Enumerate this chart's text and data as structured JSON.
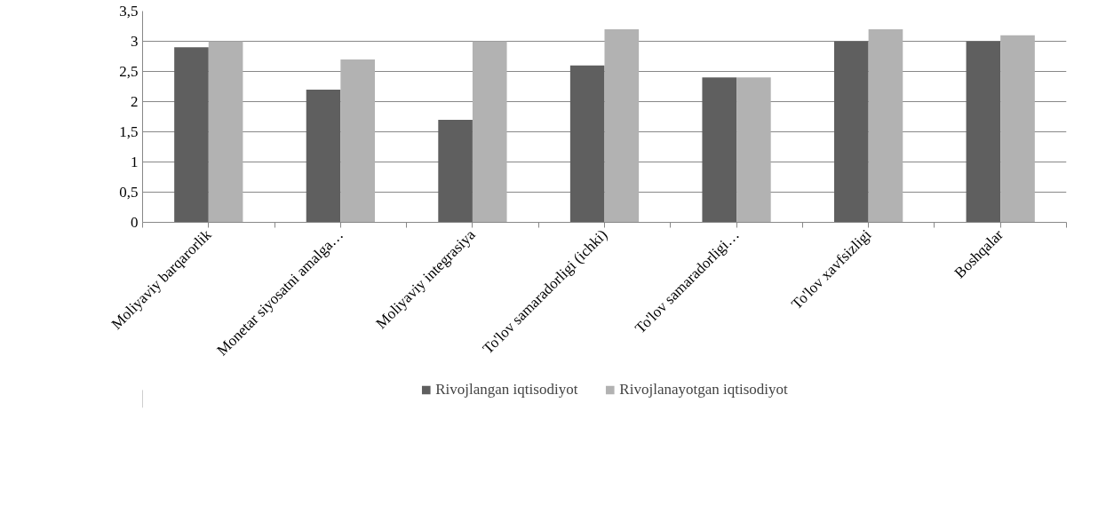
{
  "chart_data": {
    "type": "bar",
    "categories": [
      "Moliyaviy barqarorlik",
      "Monetar siyosatni amalga…",
      "Moliyaviy integrasiya",
      "To'lov samaradorligi (ichki)",
      "To'lov samaradorligi…",
      "To'lov xavfsizligi",
      "Boshqalar"
    ],
    "series": [
      {
        "name": "Rivojlangan iqtisodiyot",
        "color": "#5f5f5f",
        "values": [
          2.9,
          2.2,
          1.7,
          2.6,
          2.4,
          3.0,
          3.0
        ]
      },
      {
        "name": "Rivojlanayotgan iqtisodiyot",
        "color": "#b2b2b2",
        "values": [
          3.0,
          2.7,
          3.0,
          3.2,
          2.4,
          3.2,
          3.1
        ]
      }
    ],
    "ylim": [
      0,
      3.5
    ],
    "yticks": [
      0,
      {
        "value": 0.5,
        "label": "0,5"
      },
      1,
      {
        "value": 1.5,
        "label": "1,5"
      },
      2,
      {
        "value": 2.5,
        "label": "2,5"
      },
      3,
      {
        "value": 3.5,
        "label": "3,5"
      }
    ],
    "grid": "y",
    "legend": "bottom"
  }
}
